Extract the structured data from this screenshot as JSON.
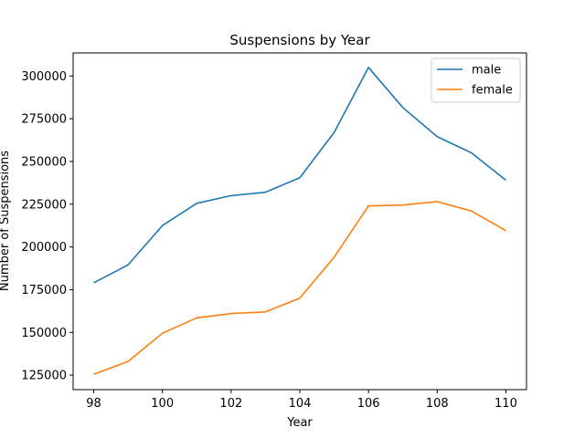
{
  "chart_data": {
    "type": "line",
    "title": "Suspensions by Year",
    "xlabel": "Year",
    "ylabel": "Number of Suspensions",
    "x": [
      98,
      99,
      100,
      101,
      102,
      103,
      104,
      105,
      106,
      107,
      108,
      109,
      110
    ],
    "series": [
      {
        "name": "male",
        "color": "#1f77b4",
        "values": [
          179000,
          189500,
          212500,
          225500,
          230000,
          232000,
          240500,
          267000,
          305000,
          281500,
          264500,
          255000,
          239000
        ]
      },
      {
        "name": "female",
        "color": "#ff7f0e",
        "values": [
          125500,
          133000,
          149500,
          158500,
          161000,
          162000,
          170000,
          194000,
          224000,
          224500,
          226500,
          221000,
          209500
        ]
      }
    ],
    "xlim": [
      97.4,
      110.6
    ],
    "ylim": [
      116500,
      313500
    ],
    "xticks": [
      98,
      100,
      102,
      104,
      106,
      108,
      110
    ],
    "yticks": [
      125000,
      150000,
      175000,
      200000,
      225000,
      250000,
      275000,
      300000
    ],
    "xtick_labels": [
      "98",
      "100",
      "102",
      "104",
      "106",
      "108",
      "110"
    ],
    "ytick_labels": [
      "125000",
      "150000",
      "175000",
      "200000",
      "225000",
      "250000",
      "275000",
      "300000"
    ],
    "grid": false,
    "legend_position": "top-right"
  }
}
